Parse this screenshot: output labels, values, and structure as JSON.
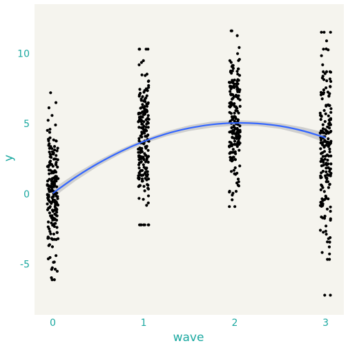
{
  "chart_data": {
    "type": "scatter",
    "title": "",
    "xlabel": "wave",
    "ylabel": "y",
    "xlim": [
      -0.2,
      3.2
    ],
    "ylim": [
      -8.6,
      13.5
    ],
    "x_ticks": [
      0,
      1,
      2,
      3
    ],
    "x_tick_labels": [
      "0",
      "1",
      "2",
      "3"
    ],
    "y_ticks": [
      -5,
      0,
      5,
      10
    ],
    "y_tick_labels": [
      "-5",
      "0",
      "5",
      "10"
    ],
    "grid": false,
    "legend": "none",
    "colors": {
      "panel_background": "#f5f4ee",
      "points": "#000000",
      "fit_line": "#3366ff",
      "ribbon": "#c8c8c8",
      "text": "#1aa8a0"
    },
    "groups": [
      {
        "x": 0,
        "n": 200,
        "y_min": -6.1,
        "y_max": 7.2,
        "y_center": 0.0,
        "y_spread": 2.6
      },
      {
        "x": 1,
        "n": 200,
        "y_min": -2.2,
        "y_max": 10.3,
        "y_center": 3.7,
        "y_spread": 2.5
      },
      {
        "x": 2,
        "n": 200,
        "y_min": -0.9,
        "y_max": 11.6,
        "y_center": 4.9,
        "y_spread": 2.6
      },
      {
        "x": 3,
        "n": 200,
        "y_min": -7.2,
        "y_max": 11.5,
        "y_center": 3.4,
        "y_spread": 3.6
      }
    ],
    "series": [
      {
        "type": "smooth",
        "x": [
          0,
          0.25,
          0.5,
          0.75,
          1,
          1.25,
          1.5,
          1.75,
          2,
          2.25,
          2.5,
          2.75,
          3
        ],
        "y": [
          0.05,
          1.19,
          2.18,
          3.03,
          3.73,
          4.28,
          4.68,
          4.94,
          5.05,
          5.01,
          4.83,
          4.49,
          4.0
        ],
        "se": [
          0.32,
          0.26,
          0.2,
          0.17,
          0.16,
          0.18,
          0.2,
          0.21,
          0.2,
          0.18,
          0.2,
          0.26,
          0.36
        ]
      }
    ]
  }
}
